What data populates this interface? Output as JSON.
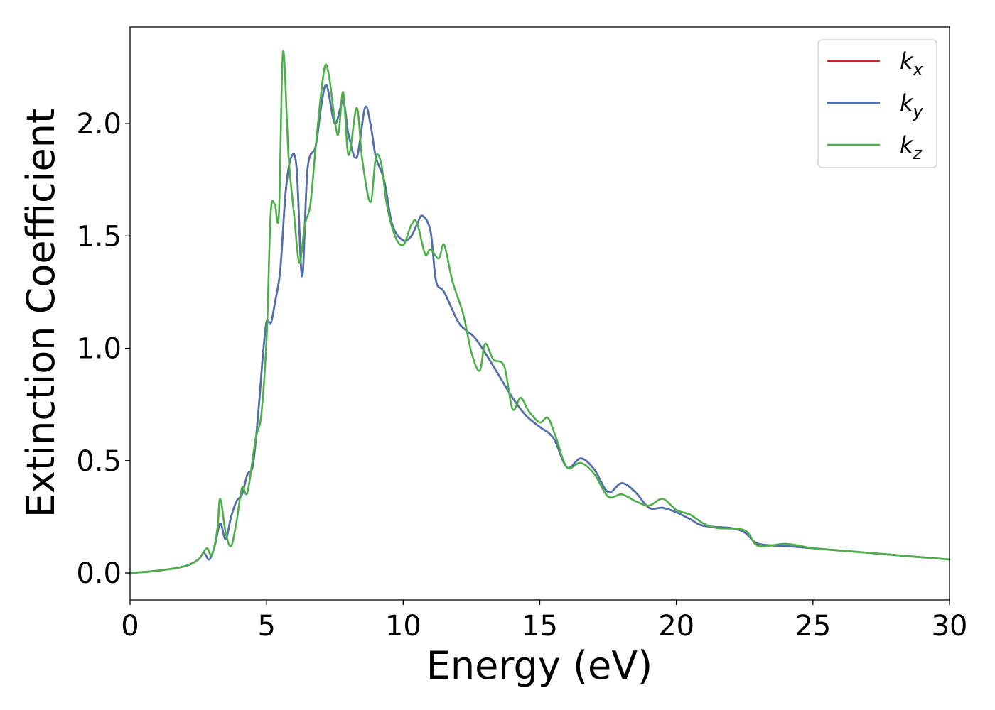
{
  "chart_data": {
    "type": "line",
    "title": "",
    "xlabel": "Energy (eV)",
    "ylabel": "Extinction Coefficient",
    "xlim": [
      0,
      30
    ],
    "ylim": [
      -0.12,
      2.43
    ],
    "xticks": [
      0,
      5,
      10,
      15,
      20,
      25,
      30
    ],
    "xtick_labels": [
      "0",
      "5",
      "10",
      "15",
      "20",
      "25",
      "30"
    ],
    "yticks": [
      0.0,
      0.5,
      1.0,
      1.5,
      2.0
    ],
    "ytick_labels": [
      "0.0",
      "0.5",
      "1.0",
      "1.5",
      "2.0"
    ],
    "grid": false,
    "legend_position": "top-right",
    "series": [
      {
        "name": "k_x",
        "legend_base": "k",
        "legend_sub": "x",
        "color": "#e41a1c",
        "x": [
          0,
          1,
          2,
          2.5,
          2.7,
          2.9,
          3.1,
          3.3,
          3.5,
          3.7,
          3.9,
          4.1,
          4.3,
          4.5,
          4.7,
          4.85,
          5.0,
          5.15,
          5.3,
          5.5,
          5.7,
          5.9,
          6.1,
          6.3,
          6.5,
          6.8,
          7.0,
          7.2,
          7.5,
          7.8,
          8.0,
          8.3,
          8.6,
          8.8,
          9.0,
          9.3,
          9.6,
          10.0,
          10.3,
          10.5,
          10.7,
          11.0,
          11.2,
          11.5,
          12.0,
          12.3,
          12.6,
          13.0,
          13.5,
          14.0,
          14.5,
          15.0,
          15.5,
          16.0,
          16.5,
          17.0,
          17.5,
          18.0,
          18.5,
          19.0,
          19.5,
          20.0,
          20.5,
          21.0,
          22.0,
          22.5,
          23.0,
          24.0,
          25.0,
          26.0,
          27.0,
          28.0,
          29.0,
          30.0
        ],
        "y": [
          0.0,
          0.01,
          0.03,
          0.06,
          0.09,
          0.06,
          0.12,
          0.22,
          0.15,
          0.25,
          0.32,
          0.35,
          0.44,
          0.48,
          0.72,
          0.95,
          1.12,
          1.11,
          1.2,
          1.35,
          1.7,
          1.85,
          1.8,
          1.32,
          1.8,
          1.9,
          2.08,
          2.17,
          2.0,
          2.1,
          1.95,
          1.85,
          2.07,
          2.0,
          1.85,
          1.75,
          1.55,
          1.48,
          1.5,
          1.55,
          1.59,
          1.52,
          1.3,
          1.25,
          1.12,
          1.08,
          1.05,
          0.98,
          0.88,
          0.78,
          0.7,
          0.65,
          0.6,
          0.47,
          0.51,
          0.46,
          0.36,
          0.4,
          0.36,
          0.29,
          0.29,
          0.27,
          0.24,
          0.21,
          0.2,
          0.18,
          0.13,
          0.12,
          0.11,
          0.1,
          0.09,
          0.08,
          0.07,
          0.06
        ]
      },
      {
        "name": "k_y",
        "legend_base": "k",
        "legend_sub": "y",
        "color": "#4b72b0",
        "x": [
          0,
          1,
          2,
          2.5,
          2.7,
          2.9,
          3.1,
          3.3,
          3.5,
          3.7,
          3.9,
          4.1,
          4.3,
          4.5,
          4.7,
          4.85,
          5.0,
          5.15,
          5.3,
          5.5,
          5.7,
          5.9,
          6.1,
          6.3,
          6.5,
          6.8,
          7.0,
          7.2,
          7.5,
          7.8,
          8.0,
          8.3,
          8.6,
          8.8,
          9.0,
          9.3,
          9.6,
          10.0,
          10.3,
          10.5,
          10.7,
          11.0,
          11.2,
          11.5,
          12.0,
          12.3,
          12.6,
          13.0,
          13.5,
          14.0,
          14.5,
          15.0,
          15.5,
          16.0,
          16.5,
          17.0,
          17.5,
          18.0,
          18.5,
          19.0,
          19.5,
          20.0,
          20.5,
          21.0,
          22.0,
          22.5,
          23.0,
          24.0,
          25.0,
          26.0,
          27.0,
          28.0,
          29.0,
          30.0
        ],
        "y": [
          0.0,
          0.01,
          0.03,
          0.06,
          0.09,
          0.06,
          0.12,
          0.22,
          0.15,
          0.25,
          0.32,
          0.35,
          0.44,
          0.48,
          0.72,
          0.95,
          1.12,
          1.11,
          1.2,
          1.35,
          1.7,
          1.85,
          1.8,
          1.32,
          1.8,
          1.9,
          2.08,
          2.17,
          2.0,
          2.1,
          1.95,
          1.85,
          2.07,
          2.0,
          1.85,
          1.75,
          1.55,
          1.48,
          1.5,
          1.55,
          1.59,
          1.52,
          1.3,
          1.25,
          1.12,
          1.08,
          1.05,
          0.98,
          0.88,
          0.78,
          0.7,
          0.65,
          0.6,
          0.47,
          0.51,
          0.46,
          0.36,
          0.4,
          0.36,
          0.29,
          0.29,
          0.27,
          0.24,
          0.21,
          0.2,
          0.18,
          0.13,
          0.12,
          0.11,
          0.1,
          0.09,
          0.08,
          0.07,
          0.06
        ]
      },
      {
        "name": "k_z",
        "legend_base": "k",
        "legend_sub": "z",
        "color": "#4daf4a",
        "x": [
          0,
          1,
          2,
          2.5,
          2.8,
          3.0,
          3.2,
          3.3,
          3.5,
          3.7,
          3.9,
          4.1,
          4.3,
          4.6,
          4.8,
          5.0,
          5.15,
          5.3,
          5.45,
          5.6,
          5.8,
          6.0,
          6.2,
          6.4,
          6.6,
          6.8,
          7.0,
          7.15,
          7.3,
          7.6,
          7.8,
          8.0,
          8.3,
          8.5,
          8.8,
          9.0,
          9.2,
          9.4,
          9.7,
          10.0,
          10.3,
          10.5,
          10.8,
          11.0,
          11.3,
          11.5,
          11.8,
          12.2,
          12.5,
          12.8,
          13.0,
          13.3,
          13.7,
          14.0,
          14.3,
          14.6,
          15.0,
          15.3,
          15.6,
          16.0,
          16.5,
          17.0,
          17.5,
          18.0,
          18.5,
          19.0,
          19.5,
          20.0,
          20.5,
          21.0,
          21.5,
          22.5,
          23.0,
          24.0,
          25.0,
          26.0,
          27.0,
          28.0,
          29.0,
          30.0
        ],
        "y": [
          0.0,
          0.01,
          0.03,
          0.06,
          0.11,
          0.08,
          0.2,
          0.33,
          0.18,
          0.12,
          0.23,
          0.38,
          0.36,
          0.6,
          0.7,
          1.05,
          1.6,
          1.64,
          1.6,
          2.32,
          1.86,
          1.6,
          1.38,
          1.55,
          1.64,
          1.9,
          2.14,
          2.26,
          2.2,
          1.95,
          2.14,
          1.86,
          2.07,
          1.84,
          1.65,
          1.85,
          1.82,
          1.64,
          1.5,
          1.46,
          1.55,
          1.56,
          1.42,
          1.44,
          1.4,
          1.46,
          1.3,
          1.15,
          0.98,
          0.9,
          1.02,
          0.95,
          0.92,
          0.73,
          0.78,
          0.72,
          0.67,
          0.69,
          0.6,
          0.47,
          0.49,
          0.44,
          0.34,
          0.35,
          0.32,
          0.3,
          0.33,
          0.28,
          0.26,
          0.22,
          0.2,
          0.19,
          0.12,
          0.13,
          0.11,
          0.1,
          0.09,
          0.08,
          0.07,
          0.06
        ]
      }
    ]
  }
}
